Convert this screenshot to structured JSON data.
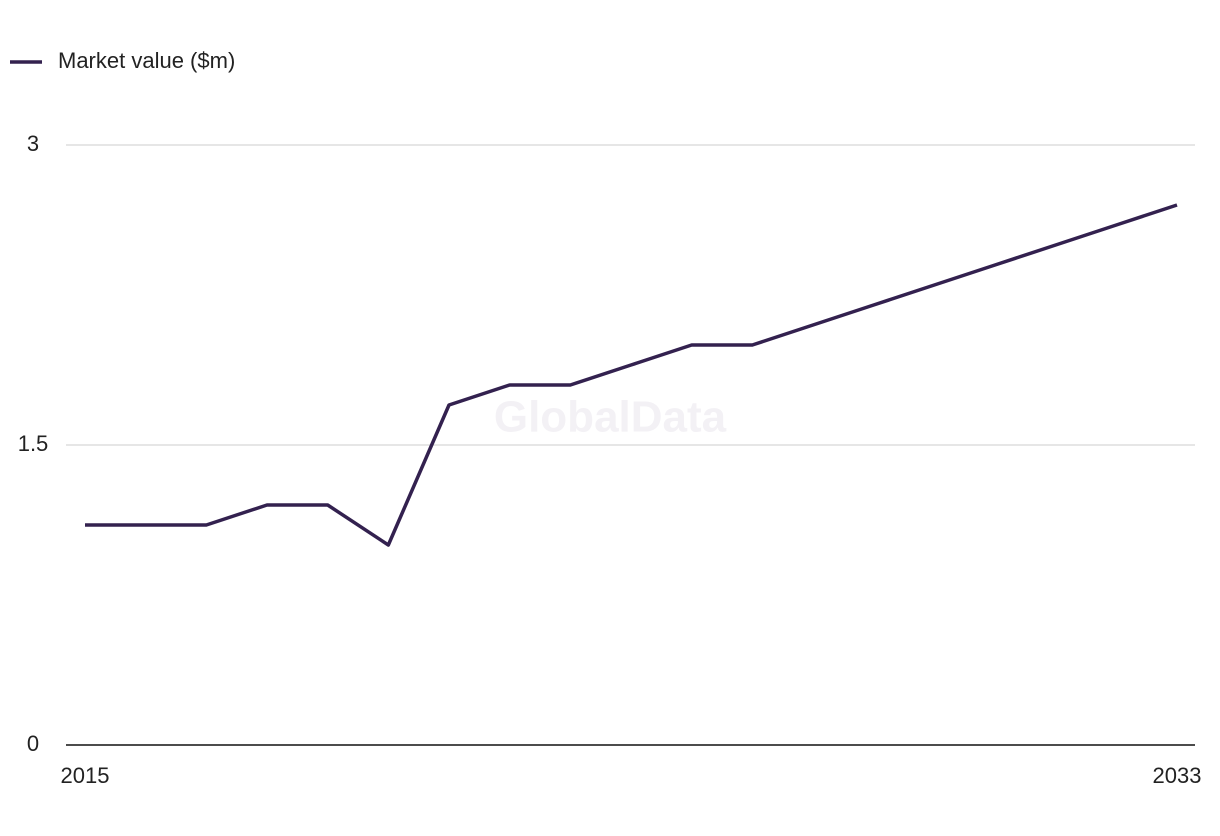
{
  "chart_data": {
    "type": "line",
    "watermark": "GlobalData",
    "x": [
      2015,
      2016,
      2017,
      2018,
      2019,
      2020,
      2021,
      2022,
      2023,
      2024,
      2025,
      2026,
      2027,
      2028,
      2029,
      2030,
      2031,
      2032,
      2033
    ],
    "series": [
      {
        "name": "Market value ($m)",
        "color": "#33214f",
        "values": [
          1.1,
          1.1,
          1.1,
          1.2,
          1.2,
          1.0,
          1.7,
          1.8,
          1.8,
          1.9,
          2.0,
          2.0,
          2.1,
          2.2,
          2.3,
          2.4,
          2.5,
          2.6,
          2.7
        ]
      }
    ],
    "xlim": [
      2015,
      2033
    ],
    "xticks": [
      2015,
      2033
    ],
    "ylim": [
      0,
      3
    ],
    "yticks": [
      0,
      1.5,
      3
    ],
    "grid": true,
    "legend": "top-left"
  }
}
